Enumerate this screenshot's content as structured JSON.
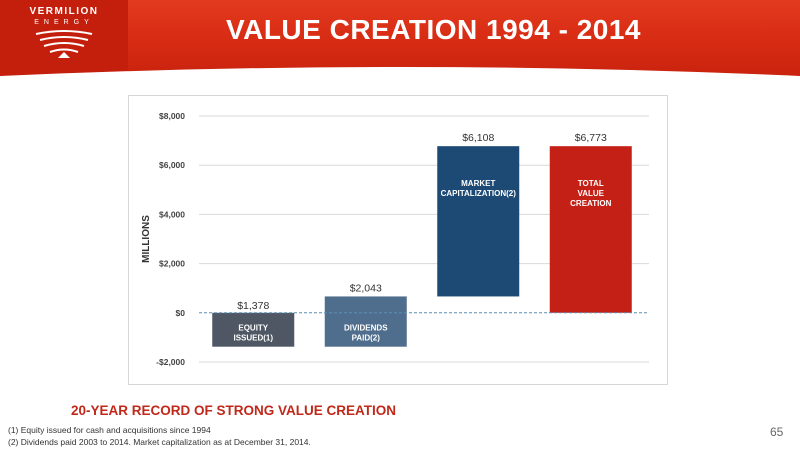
{
  "header": {
    "logo_name": "VERMILION",
    "logo_sub": "ENERGY",
    "title": "VALUE CREATION 1994 - 2014"
  },
  "chart_data": {
    "type": "bar",
    "subtype": "waterfall",
    "categories": [
      "EQUITY ISSUED(1)",
      "DIVIDENDS PAID(2)",
      "MARKET CAPITALIZATION(2)",
      "TOTAL VALUE CREATION"
    ],
    "bars": [
      {
        "label_lines": [
          "EQUITY",
          "ISSUED(1)"
        ],
        "value_label": "$1,378",
        "start": 0,
        "end": -1378,
        "color": "#4e5763"
      },
      {
        "label_lines": [
          "DIVIDENDS",
          "PAID(2)"
        ],
        "value_label": "$2,043",
        "start": -1378,
        "end": 665,
        "color": "#4f6d8c"
      },
      {
        "label_lines": [
          "MARKET",
          "CAPITALIZATION(2)"
        ],
        "value_label": "$6,108",
        "start": 665,
        "end": 6773,
        "color": "#1c4a74"
      },
      {
        "label_lines": [
          "TOTAL",
          "VALUE",
          "CREATION"
        ],
        "value_label": "$6,773",
        "start": 0,
        "end": 6773,
        "color": "#c42016"
      }
    ],
    "ylabel": "MILLIONS",
    "yticks": [
      -2000,
      0,
      2000,
      4000,
      6000,
      8000
    ],
    "ytick_labels": [
      "-$2,000",
      "$0",
      "$2,000",
      "$4,000",
      "$6,000",
      "$8,000"
    ],
    "ylim": [
      -2000,
      8000
    ],
    "grid": true
  },
  "subtitle": "20-YEAR RECORD OF STRONG VALUE CREATION",
  "footnotes": [
    "(1)  Equity issued for cash and acquisitions since 1994",
    "(2)  Dividends paid 2003 to 2014.  Market capitalization as at December 31, 2014."
  ],
  "page_number": "65"
}
